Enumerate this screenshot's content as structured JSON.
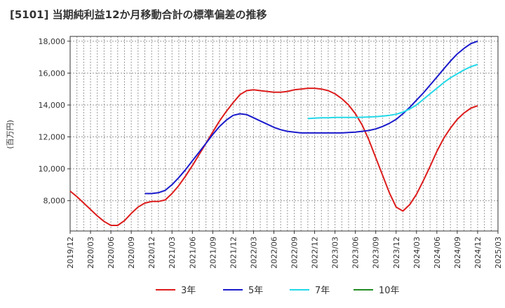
{
  "chart_data": {
    "type": "line",
    "title": "[5101]  当期純利益12か月移動合計の標準偏差の推移",
    "ylabel": "(百万円)",
    "ylim": [
      6100,
      18300
    ],
    "yticks": [
      8000,
      10000,
      12000,
      14000,
      16000,
      18000
    ],
    "ytick_labels": [
      "8,000",
      "10,000",
      "12,000",
      "14,000",
      "16,000",
      "18,000"
    ],
    "x_range": [
      "2019-12",
      "2025-03"
    ],
    "xtick_labels": [
      "2019/12",
      "2020/03",
      "2020/06",
      "2020/09",
      "2020/12",
      "2021/03",
      "2021/06",
      "2021/09",
      "2021/12",
      "2022/03",
      "2022/06",
      "2022/09",
      "2022/12",
      "2023/03",
      "2023/06",
      "2023/09",
      "2023/12",
      "2024/03",
      "2024/06",
      "2024/09",
      "2024/12",
      "2025/03"
    ],
    "grid": true,
    "legend_position": "bottom",
    "series": [
      {
        "name": "3年",
        "color": "#dd1c1c",
        "points": [
          [
            "2019-12",
            8600
          ],
          [
            "2020-01",
            8250
          ],
          [
            "2020-02",
            7850
          ],
          [
            "2020-03",
            7450
          ],
          [
            "2020-04",
            7050
          ],
          [
            "2020-05",
            6700
          ],
          [
            "2020-06",
            6450
          ],
          [
            "2020-07",
            6450
          ],
          [
            "2020-08",
            6750
          ],
          [
            "2020-09",
            7200
          ],
          [
            "2020-10",
            7600
          ],
          [
            "2020-11",
            7850
          ],
          [
            "2020-12",
            7950
          ],
          [
            "2021-01",
            7950
          ],
          [
            "2021-02",
            8050
          ],
          [
            "2021-03",
            8450
          ],
          [
            "2021-04",
            8950
          ],
          [
            "2021-05",
            9550
          ],
          [
            "2021-06",
            10200
          ],
          [
            "2021-07",
            10900
          ],
          [
            "2021-08",
            11600
          ],
          [
            "2021-09",
            12300
          ],
          [
            "2021-10",
            13000
          ],
          [
            "2021-11",
            13600
          ],
          [
            "2021-12",
            14150
          ],
          [
            "2022-01",
            14650
          ],
          [
            "2022-02",
            14900
          ],
          [
            "2022-03",
            14950
          ],
          [
            "2022-04",
            14900
          ],
          [
            "2022-05",
            14850
          ],
          [
            "2022-06",
            14800
          ],
          [
            "2022-07",
            14800
          ],
          [
            "2022-08",
            14850
          ],
          [
            "2022-09",
            14950
          ],
          [
            "2022-10",
            15000
          ],
          [
            "2022-11",
            15050
          ],
          [
            "2022-12",
            15050
          ],
          [
            "2023-01",
            15000
          ],
          [
            "2023-02",
            14900
          ],
          [
            "2023-03",
            14700
          ],
          [
            "2023-04",
            14400
          ],
          [
            "2023-05",
            14000
          ],
          [
            "2023-06",
            13450
          ],
          [
            "2023-07",
            12750
          ],
          [
            "2023-08",
            11800
          ],
          [
            "2023-09",
            10700
          ],
          [
            "2023-10",
            9600
          ],
          [
            "2023-11",
            8500
          ],
          [
            "2023-12",
            7600
          ],
          [
            "2024-01",
            7350
          ],
          [
            "2024-02",
            7750
          ],
          [
            "2024-03",
            8400
          ],
          [
            "2024-04",
            9250
          ],
          [
            "2024-05",
            10150
          ],
          [
            "2024-06",
            11100
          ],
          [
            "2024-07",
            11900
          ],
          [
            "2024-08",
            12550
          ],
          [
            "2024-09",
            13100
          ],
          [
            "2024-10",
            13500
          ],
          [
            "2024-11",
            13800
          ],
          [
            "2024-12",
            13950
          ]
        ]
      },
      {
        "name": "5年",
        "color": "#1a1acc",
        "points": [
          [
            "2020-11",
            8450
          ],
          [
            "2020-12",
            8450
          ],
          [
            "2021-01",
            8500
          ],
          [
            "2021-02",
            8650
          ],
          [
            "2021-03",
            9000
          ],
          [
            "2021-04",
            9450
          ],
          [
            "2021-05",
            9950
          ],
          [
            "2021-06",
            10500
          ],
          [
            "2021-07",
            11050
          ],
          [
            "2021-08",
            11600
          ],
          [
            "2021-09",
            12150
          ],
          [
            "2021-10",
            12650
          ],
          [
            "2021-11",
            13050
          ],
          [
            "2021-12",
            13350
          ],
          [
            "2022-01",
            13450
          ],
          [
            "2022-02",
            13400
          ],
          [
            "2022-03",
            13200
          ],
          [
            "2022-04",
            13000
          ],
          [
            "2022-05",
            12800
          ],
          [
            "2022-06",
            12600
          ],
          [
            "2022-07",
            12450
          ],
          [
            "2022-08",
            12350
          ],
          [
            "2022-09",
            12300
          ],
          [
            "2022-10",
            12250
          ],
          [
            "2022-11",
            12250
          ],
          [
            "2022-12",
            12250
          ],
          [
            "2023-01",
            12250
          ],
          [
            "2023-02",
            12250
          ],
          [
            "2023-03",
            12250
          ],
          [
            "2023-04",
            12250
          ],
          [
            "2023-05",
            12280
          ],
          [
            "2023-06",
            12300
          ],
          [
            "2023-07",
            12350
          ],
          [
            "2023-08",
            12400
          ],
          [
            "2023-09",
            12500
          ],
          [
            "2023-10",
            12650
          ],
          [
            "2023-11",
            12850
          ],
          [
            "2023-12",
            13100
          ],
          [
            "2024-01",
            13450
          ],
          [
            "2024-02",
            13850
          ],
          [
            "2024-03",
            14300
          ],
          [
            "2024-04",
            14750
          ],
          [
            "2024-05",
            15250
          ],
          [
            "2024-06",
            15750
          ],
          [
            "2024-07",
            16250
          ],
          [
            "2024-08",
            16750
          ],
          [
            "2024-09",
            17200
          ],
          [
            "2024-10",
            17550
          ],
          [
            "2024-11",
            17850
          ],
          [
            "2024-12",
            18000
          ]
        ]
      },
      {
        "name": "7年",
        "color": "#22d8e8",
        "points": [
          [
            "2022-11",
            13150
          ],
          [
            "2022-12",
            13180
          ],
          [
            "2023-01",
            13200
          ],
          [
            "2023-02",
            13200
          ],
          [
            "2023-03",
            13220
          ],
          [
            "2023-04",
            13220
          ],
          [
            "2023-05",
            13220
          ],
          [
            "2023-06",
            13220
          ],
          [
            "2023-07",
            13230
          ],
          [
            "2023-08",
            13250
          ],
          [
            "2023-09",
            13270
          ],
          [
            "2023-10",
            13300
          ],
          [
            "2023-11",
            13350
          ],
          [
            "2023-12",
            13420
          ],
          [
            "2024-01",
            13550
          ],
          [
            "2024-02",
            13750
          ],
          [
            "2024-03",
            14000
          ],
          [
            "2024-04",
            14350
          ],
          [
            "2024-05",
            14700
          ],
          [
            "2024-06",
            15050
          ],
          [
            "2024-07",
            15400
          ],
          [
            "2024-08",
            15700
          ],
          [
            "2024-09",
            15950
          ],
          [
            "2024-10",
            16200
          ],
          [
            "2024-11",
            16400
          ],
          [
            "2024-12",
            16550
          ]
        ]
      },
      {
        "name": "10年",
        "color": "#228b22",
        "points": []
      }
    ]
  }
}
